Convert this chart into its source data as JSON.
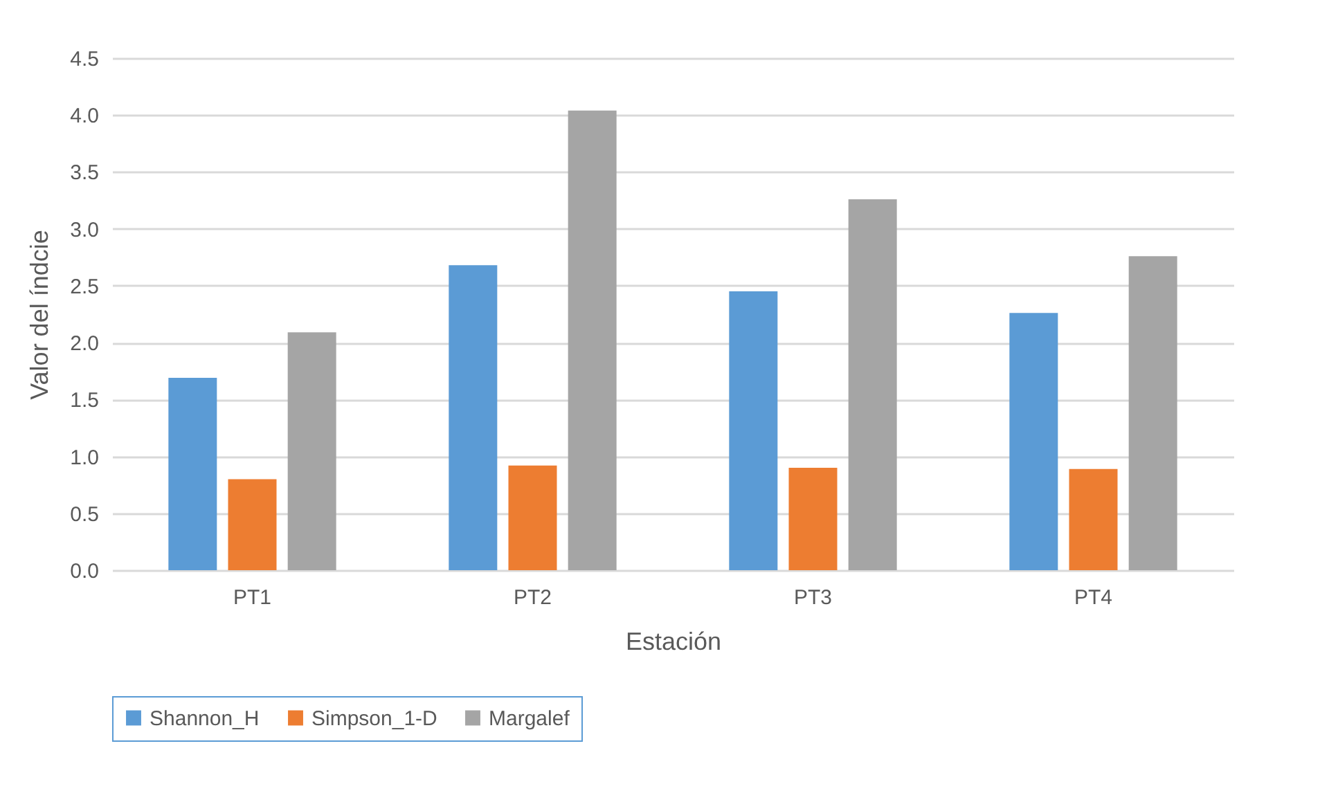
{
  "chart_data": {
    "type": "bar",
    "xlabel": "Estación",
    "ylabel": "Valor del índcie",
    "categories": [
      "PT1",
      "PT2",
      "PT3",
      "PT4"
    ],
    "series": [
      {
        "name": "Shannon_H",
        "color": "#5b9bd5",
        "values": [
          1.69,
          2.68,
          2.45,
          2.26
        ]
      },
      {
        "name": "Simpson_1-D",
        "color": "#ed7d31",
        "values": [
          0.8,
          0.92,
          0.9,
          0.89
        ]
      },
      {
        "name": "Margalef",
        "color": "#a5a5a5",
        "values": [
          2.09,
          4.04,
          3.26,
          2.76
        ]
      }
    ],
    "ylim": [
      0,
      4.5
    ],
    "yticks": [
      {
        "value": 0,
        "label": "0.0"
      },
      {
        "value": 0.5,
        "label": "0.5"
      },
      {
        "value": 1,
        "label": "1.0"
      },
      {
        "value": 1.5,
        "label": "1.5"
      },
      {
        "value": 2,
        "label": "2.0"
      },
      {
        "value": 2.5,
        "label": "2.5"
      },
      {
        "value": 3,
        "label": "3.0"
      },
      {
        "value": 3.5,
        "label": "3.5"
      },
      {
        "value": 4,
        "label": "4.0"
      },
      {
        "value": 4.5,
        "label": "4.5"
      }
    ],
    "grid": "y",
    "legend": "bottom"
  }
}
